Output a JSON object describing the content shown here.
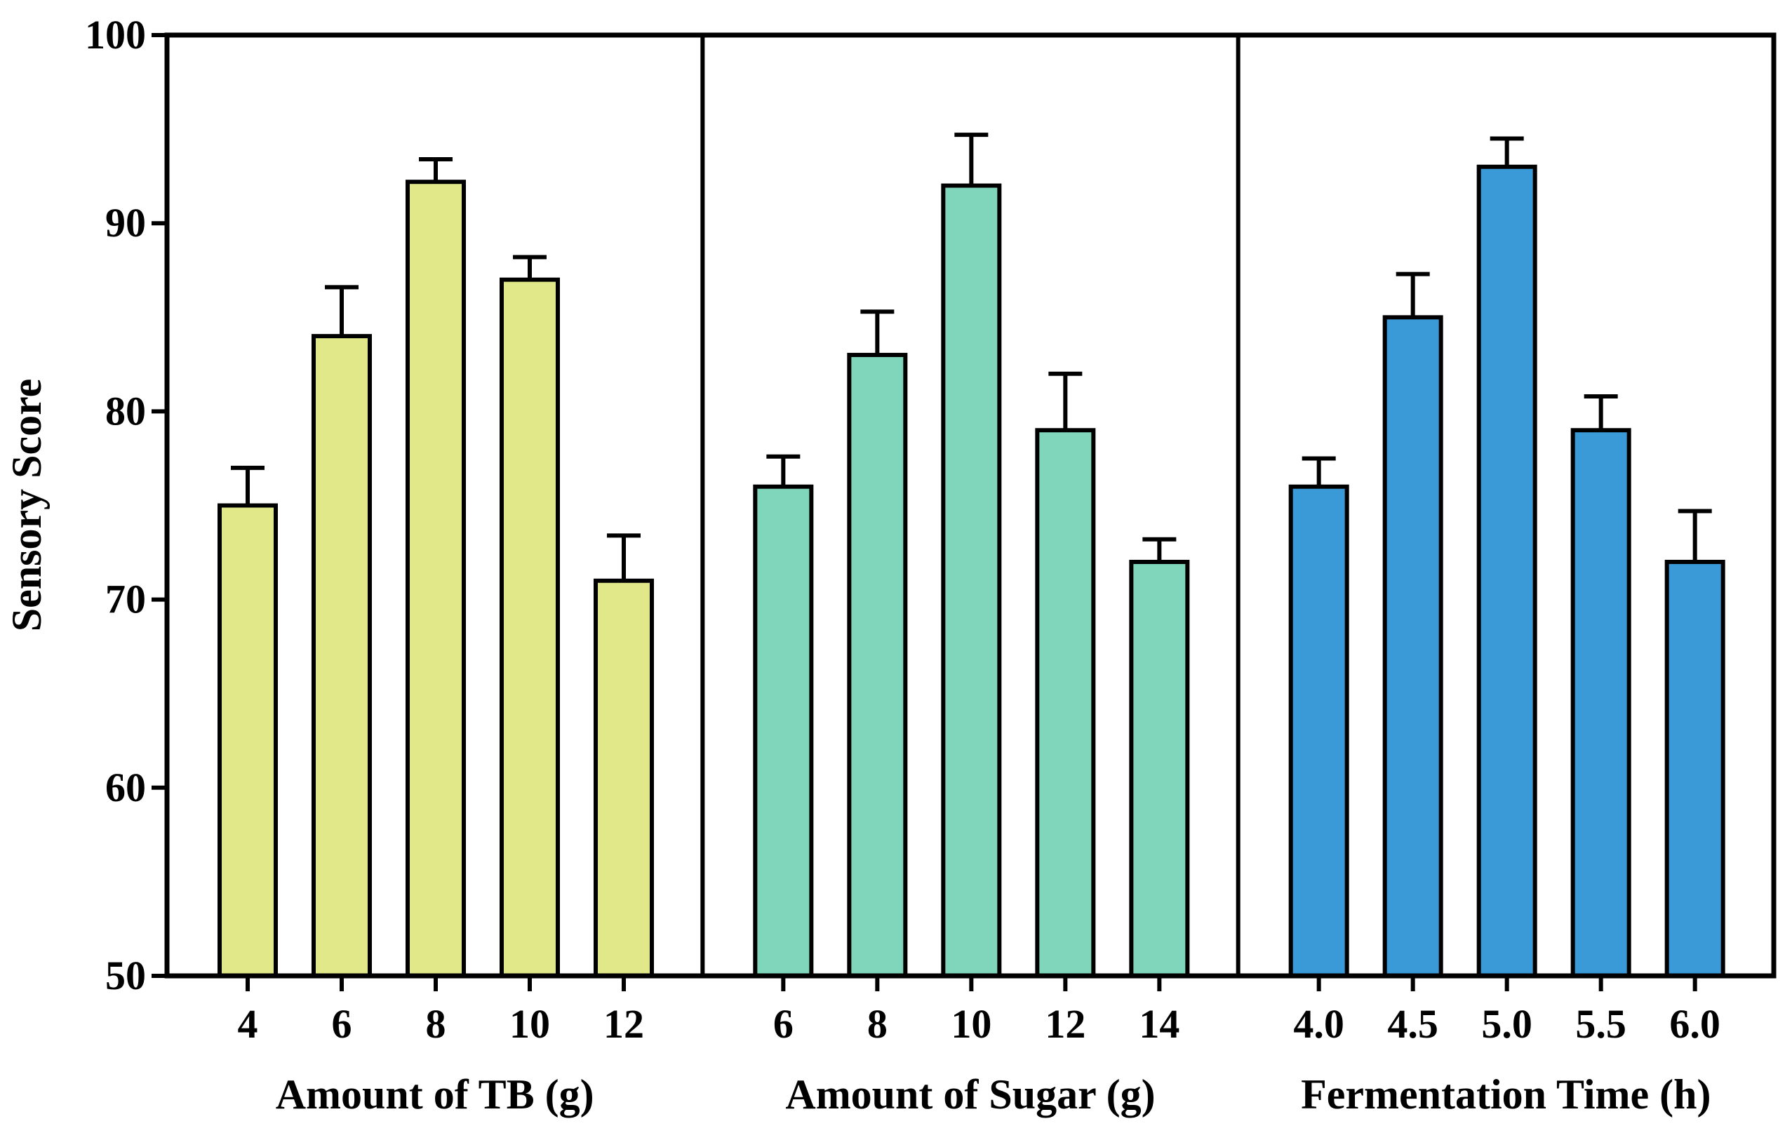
{
  "chart_data": {
    "type": "bar",
    "ylabel": "Sensory Score",
    "ylim": [
      50,
      100
    ],
    "yticks": [
      "50",
      "60",
      "70",
      "80",
      "90",
      "100"
    ],
    "grid": false,
    "legend": "none",
    "panels": [
      {
        "xlabel": "Amount of TB (g)",
        "color": "#e0e88a",
        "categories": [
          "4",
          "6",
          "8",
          "10",
          "12"
        ],
        "values": [
          75,
          84,
          92.2,
          87,
          71
        ],
        "errors": [
          2,
          2.6,
          1.2,
          1.2,
          2.4
        ]
      },
      {
        "xlabel": "Amount of Sugar (g)",
        "color": "#7fd6bb",
        "categories": [
          "6",
          "8",
          "10",
          "12",
          "14"
        ],
        "values": [
          76,
          83,
          92,
          79,
          72
        ],
        "errors": [
          1.6,
          2.3,
          2.7,
          3,
          1.2
        ]
      },
      {
        "xlabel": "Fermentation Time (h)",
        "color": "#3a9ad8",
        "categories": [
          "4.0",
          "4.5",
          "5.0",
          "5.5",
          "6.0"
        ],
        "values": [
          76,
          85,
          93,
          79,
          72
        ],
        "errors": [
          1.5,
          2.3,
          1.5,
          1.8,
          2.7
        ]
      }
    ]
  }
}
